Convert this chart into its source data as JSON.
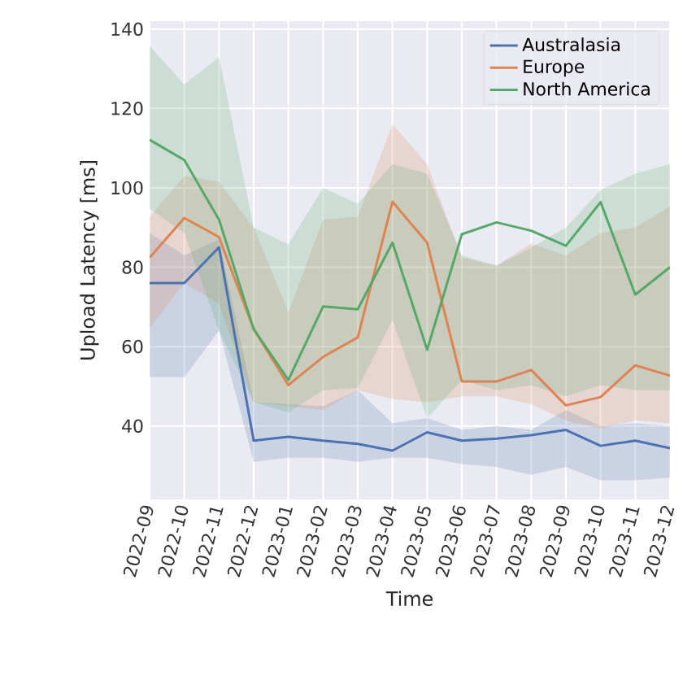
{
  "chart_data": {
    "type": "line",
    "ylabel": "Upload Latency [ms]",
    "xlabel": "Time",
    "categories": [
      "2022-09",
      "2022-10",
      "2022-11",
      "2022-12",
      "2023-01",
      "2023-02",
      "2023-03",
      "2023-04",
      "2023-05",
      "2023-06",
      "2023-07",
      "2023-08",
      "2023-09",
      "2023-10",
      "2023-11",
      "2023-12"
    ],
    "series": [
      {
        "name": "Australasia",
        "color": "#4c72b0",
        "values": [
          76,
          76,
          85,
          36.3,
          37.3,
          36.3,
          35.5,
          33.8,
          38.4,
          36.3,
          36.8,
          37.7,
          39.0,
          35.0,
          36.3,
          34.4
        ],
        "upper": [
          88.6,
          83,
          87,
          46,
          45.5,
          45,
          49,
          40.7,
          42,
          39,
          40,
          39,
          44,
          40,
          40.7,
          40
        ],
        "lower": [
          52.3,
          52.3,
          64,
          31,
          32,
          32,
          31,
          32,
          32,
          30.4,
          29.7,
          27.7,
          29.7,
          26.3,
          26.3,
          27
        ]
      },
      {
        "name": "Europe",
        "color": "#dd8452",
        "values": [
          82.4,
          92.4,
          87.6,
          64.4,
          50.3,
          57.4,
          62.3,
          96.5,
          86.2,
          51.2,
          51.2,
          54.1,
          45.2,
          47.3,
          55.3,
          52.7
        ],
        "upper": [
          92.7,
          103,
          101.5,
          90,
          68.7,
          92,
          92.7,
          116,
          106,
          82.4,
          80.4,
          86,
          83,
          88.6,
          90,
          95.4
        ],
        "lower": [
          64.6,
          76,
          70.8,
          46,
          45,
          44,
          49,
          46.8,
          46,
          47.5,
          47.5,
          45.5,
          41.4,
          39.3,
          41.4,
          40.7
        ]
      },
      {
        "name": "North America",
        "color": "#55a868",
        "values": [
          112.1,
          107,
          92,
          64.4,
          51.6,
          70.1,
          69.4,
          86.2,
          59.2,
          88.3,
          91.3,
          89.2,
          85.4,
          96.4,
          73.1,
          80
        ],
        "upper": [
          135.8,
          126,
          133,
          90,
          85.8,
          100,
          96,
          106,
          103.6,
          83,
          80.4,
          85,
          90,
          99.5,
          103.6,
          106
        ],
        "lower": [
          94.7,
          88.6,
          64,
          46,
          43.4,
          49,
          49.6,
          66.7,
          42,
          51.6,
          49,
          50.3,
          47.5,
          50.3,
          49,
          49
        ]
      }
    ],
    "ylim": [
      21.5,
      142
    ],
    "yticks": [
      40,
      60,
      80,
      100,
      120,
      140
    ],
    "grid": true,
    "legend": "top right",
    "line_style": "solid",
    "marker": "none"
  }
}
